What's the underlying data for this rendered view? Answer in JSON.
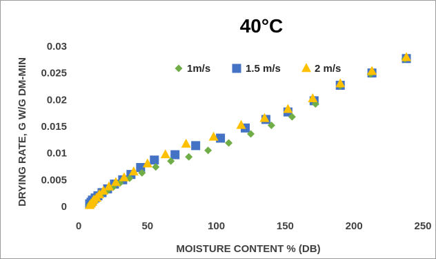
{
  "chart_data": {
    "type": "scatter",
    "title": "40°C",
    "xlabel": "MOISTURE CONTENT % (DB)",
    "ylabel": "DRYING RATE, G W/G DM-MIN",
    "xlim": [
      0,
      250
    ],
    "ylim": [
      0,
      0.03
    ],
    "xticks": [
      "0",
      "50",
      "100",
      "150",
      "200",
      "250"
    ],
    "yticks": [
      "0",
      "0.005",
      "0.01",
      "0.015",
      "0.02",
      "0.025",
      "0.03"
    ],
    "grid": false,
    "legend_position": "top",
    "series": [
      {
        "name": "1m/s",
        "marker": "diamond",
        "color": "#70AD47",
        "x": [
          8,
          9,
          10,
          11,
          12,
          14,
          17,
          21,
          25,
          30,
          37,
          46,
          56,
          67,
          80,
          94,
          109,
          125,
          140,
          155,
          172,
          190,
          212,
          237
        ],
        "y": [
          0.0003,
          0.0006,
          0.0009,
          0.0012,
          0.0015,
          0.0019,
          0.0024,
          0.003,
          0.0036,
          0.0044,
          0.0053,
          0.0063,
          0.0074,
          0.0085,
          0.0093,
          0.0105,
          0.0119,
          0.0136,
          0.0152,
          0.0168,
          0.0192,
          0.0226,
          0.0248,
          0.0276
        ]
      },
      {
        "name": "1.5 m/s",
        "marker": "square",
        "color": "#4472C4",
        "x": [
          8,
          9,
          10,
          12,
          14,
          17,
          21,
          26,
          32,
          38,
          45,
          55,
          70,
          85,
          103,
          121,
          136,
          152,
          171,
          190,
          213,
          238
        ],
        "y": [
          0.0005,
          0.0008,
          0.0012,
          0.0016,
          0.002,
          0.0026,
          0.0033,
          0.0042,
          0.005,
          0.006,
          0.0073,
          0.0087,
          0.0097,
          0.0114,
          0.0128,
          0.0147,
          0.0163,
          0.0177,
          0.0198,
          0.0227,
          0.025,
          0.0277
        ]
      },
      {
        "name": "2 m/s",
        "marker": "triangle",
        "color": "#FFC000",
        "x": [
          8,
          9,
          10,
          11,
          13,
          15,
          18,
          22,
          27,
          33,
          40,
          50,
          63,
          78,
          98,
          118,
          135,
          152,
          170,
          190,
          213,
          238
        ],
        "y": [
          0.0002,
          0.0005,
          0.0008,
          0.0012,
          0.0016,
          0.0022,
          0.0029,
          0.0037,
          0.0045,
          0.0054,
          0.0065,
          0.008,
          0.0097,
          0.0117,
          0.013,
          0.0152,
          0.0165,
          0.0182,
          0.0202,
          0.023,
          0.0253,
          0.0279
        ]
      }
    ]
  }
}
